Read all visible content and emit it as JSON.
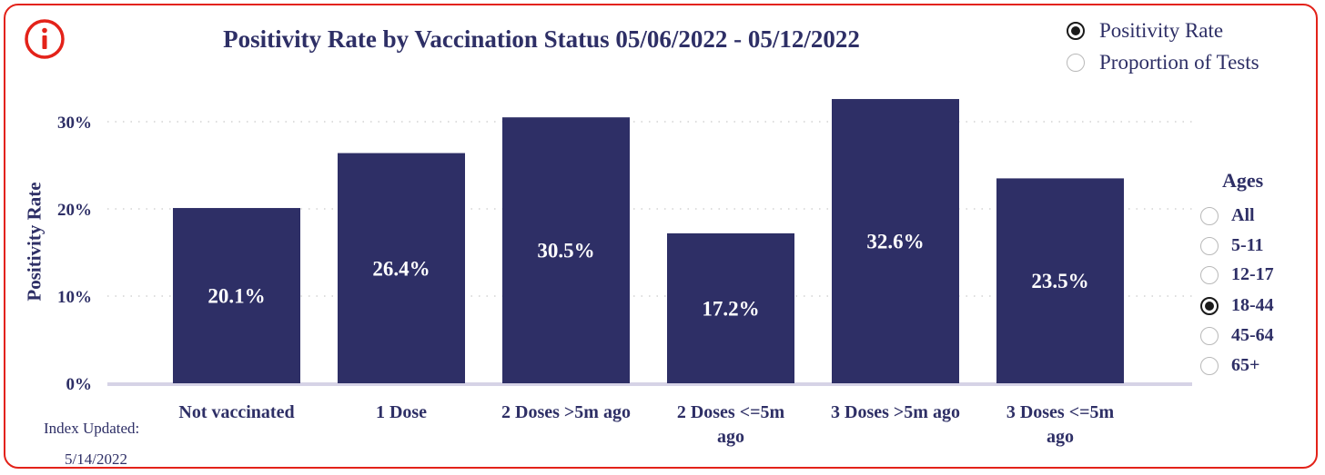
{
  "metric_selector": {
    "options": [
      {
        "label": "Positivity Rate",
        "selected": true
      },
      {
        "label": "Proportion of Tests",
        "selected": false
      }
    ]
  },
  "ages_filter": {
    "title": "Ages",
    "options": [
      {
        "label": "All",
        "selected": false
      },
      {
        "label": "5-11",
        "selected": false
      },
      {
        "label": "12-17",
        "selected": false
      },
      {
        "label": "18-44",
        "selected": true
      },
      {
        "label": "45-64",
        "selected": false
      },
      {
        "label": "65+",
        "selected": false
      }
    ]
  },
  "footer": {
    "index_updated_label": "Index Updated:",
    "index_updated_date": "5/14/2022"
  },
  "colors": {
    "bar": "#2e2f66",
    "frame": "#e32219",
    "text": "#2e2f66"
  },
  "icons": {
    "info": "info-circle-icon"
  },
  "chart_data": {
    "type": "bar",
    "title": "Positivity Rate by Vaccination Status 05/06/2022 - 05/12/2022",
    "xlabel": "",
    "ylabel": "Positivity Rate",
    "categories": [
      [
        "Not vaccinated"
      ],
      [
        "1 Dose"
      ],
      [
        "2 Doses >5m ago"
      ],
      [
        "2 Doses <=5m",
        "ago"
      ],
      [
        "3 Doses >5m ago"
      ],
      [
        "3 Doses <=5m",
        "ago"
      ]
    ],
    "values": [
      20.1,
      26.4,
      30.5,
      17.2,
      32.6,
      23.5
    ],
    "data_labels": [
      "20.1%",
      "26.4%",
      "30.5%",
      "17.2%",
      "32.6%",
      "23.5%"
    ],
    "yticks": [
      0,
      10,
      20,
      30
    ],
    "ytick_labels": [
      "0%",
      "10%",
      "20%",
      "30%"
    ],
    "ylim": [
      0,
      33
    ],
    "grid": true,
    "legend": "none"
  }
}
